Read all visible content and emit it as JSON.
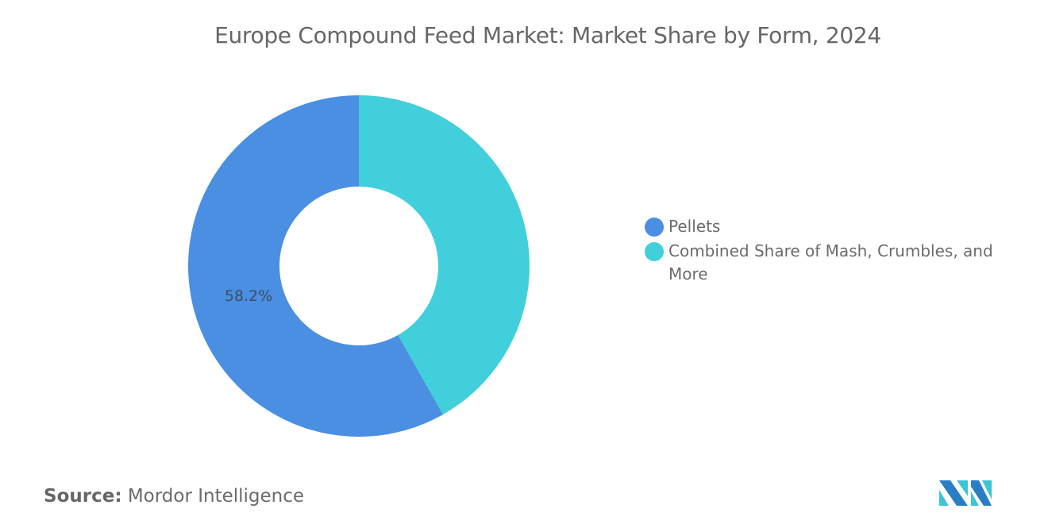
{
  "title": "Europe Compound Feed Market: Market Share by Form, 2024",
  "legend": {
    "items": [
      {
        "label": "Pellets",
        "color": "#4a8fe2"
      },
      {
        "label": "Combined Share of Mash, Crumbles, and More",
        "color": "#41cfdb"
      }
    ]
  },
  "slice_labels": {
    "pellets": "58.2%"
  },
  "source": {
    "label": "Source:",
    "value": "Mordor Intelligence"
  },
  "chart_data": {
    "type": "pie",
    "subtype": "donut",
    "title": "Europe Compound Feed Market: Market Share by Form, 2024",
    "categories": [
      "Pellets",
      "Combined Share of Mash, Crumbles, and More"
    ],
    "values": [
      58.2,
      41.8
    ],
    "unit": "%",
    "data_labels": [
      "58.2%",
      ""
    ],
    "colors": [
      "#4a8fe2",
      "#41cfdb"
    ],
    "legend_position": "right",
    "source": "Mordor Intelligence"
  }
}
